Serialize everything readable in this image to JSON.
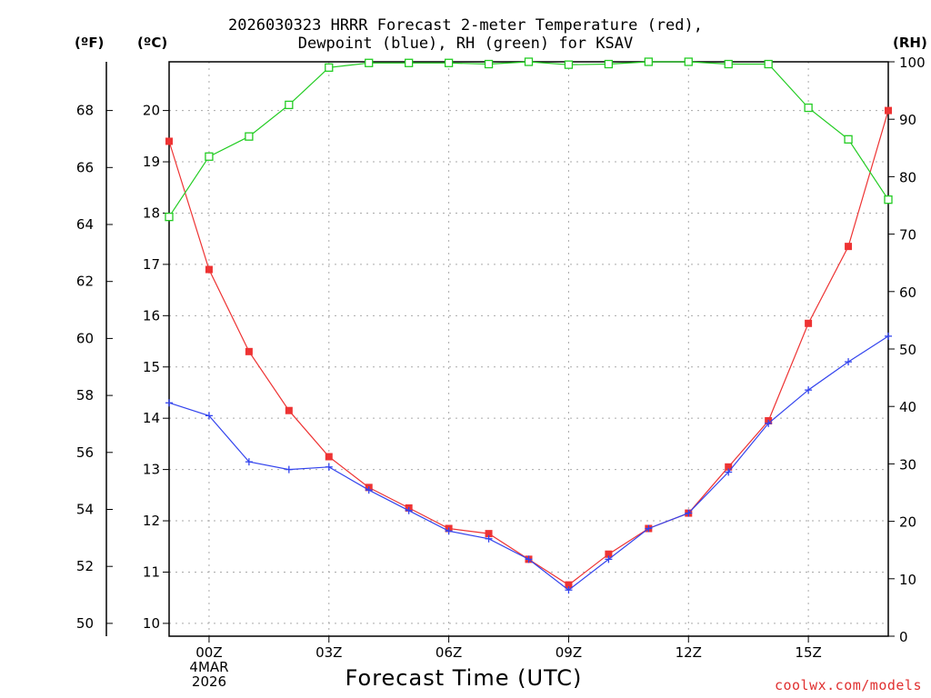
{
  "title": {
    "line1": "2026030323 HRRR Forecast 2-meter Temperature (red),",
    "line2": "Dewpoint (blue), RH (green) for KSAV"
  },
  "units": {
    "fahrenheit": "(ºF)",
    "celsius": "(ºC)",
    "rh": "(RH)"
  },
  "footer": {
    "xlabel": "Forecast Time (UTC)",
    "date_line1": "4MAR",
    "date_line2": "2026",
    "credit": "coolwx.com/models"
  },
  "chart_data": {
    "type": "line",
    "title": "2026030323 HRRR Forecast 2-meter Temperature (red), Dewpoint (blue), RH (green) for KSAV",
    "xlabel": "Forecast Time (UTC)",
    "x_hours": [
      -1,
      0,
      1,
      2,
      3,
      4,
      5,
      6,
      7,
      8,
      9,
      10,
      11,
      12,
      13,
      14,
      15,
      16,
      17
    ],
    "xlim": [
      -1,
      17
    ],
    "x_ticks": [
      {
        "hour": 0,
        "label": "00Z"
      },
      {
        "hour": 3,
        "label": "03Z"
      },
      {
        "hour": 6,
        "label": "06Z"
      },
      {
        "hour": 9,
        "label": "09Z"
      },
      {
        "hour": 12,
        "label": "12Z"
      },
      {
        "hour": 15,
        "label": "15Z"
      }
    ],
    "celsius_axis": {
      "ylim": [
        9.75,
        20.95
      ],
      "ticks": [
        10,
        11,
        12,
        13,
        14,
        15,
        16,
        17,
        18,
        19,
        20
      ]
    },
    "fahrenheit_axis": {
      "ticks": [
        50,
        52,
        54,
        56,
        58,
        60,
        62,
        64,
        66,
        68
      ]
    },
    "rh_axis": {
      "ylim": [
        0,
        100
      ],
      "ticks": [
        0,
        10,
        20,
        30,
        40,
        50,
        60,
        70,
        80,
        90,
        100
      ]
    },
    "series": [
      {
        "name": "Temperature",
        "axis": "celsius",
        "color": "#ee3333",
        "marker": "square",
        "values": [
          19.4,
          16.9,
          15.3,
          14.15,
          13.25,
          12.65,
          12.25,
          11.85,
          11.75,
          11.25,
          10.75,
          11.35,
          11.85,
          12.15,
          13.05,
          13.95,
          15.85,
          17.35,
          20.0
        ]
      },
      {
        "name": "Dewpoint",
        "axis": "celsius",
        "color": "#3344ee",
        "marker": "plus",
        "values": [
          14.3,
          14.05,
          13.15,
          13.0,
          13.05,
          12.6,
          12.2,
          11.8,
          11.65,
          11.25,
          10.65,
          11.25,
          11.85,
          12.15,
          12.95,
          13.9,
          14.55,
          15.1,
          15.6
        ]
      },
      {
        "name": "RH",
        "axis": "rh",
        "color": "#22cc22",
        "marker": "open-square",
        "values": [
          73.0,
          83.5,
          87.0,
          92.5,
          99.0,
          99.8,
          99.8,
          99.8,
          99.6,
          100.0,
          99.5,
          99.6,
          100.0,
          100.0,
          99.6,
          99.6,
          92.0,
          86.5,
          76.0
        ]
      }
    ]
  }
}
